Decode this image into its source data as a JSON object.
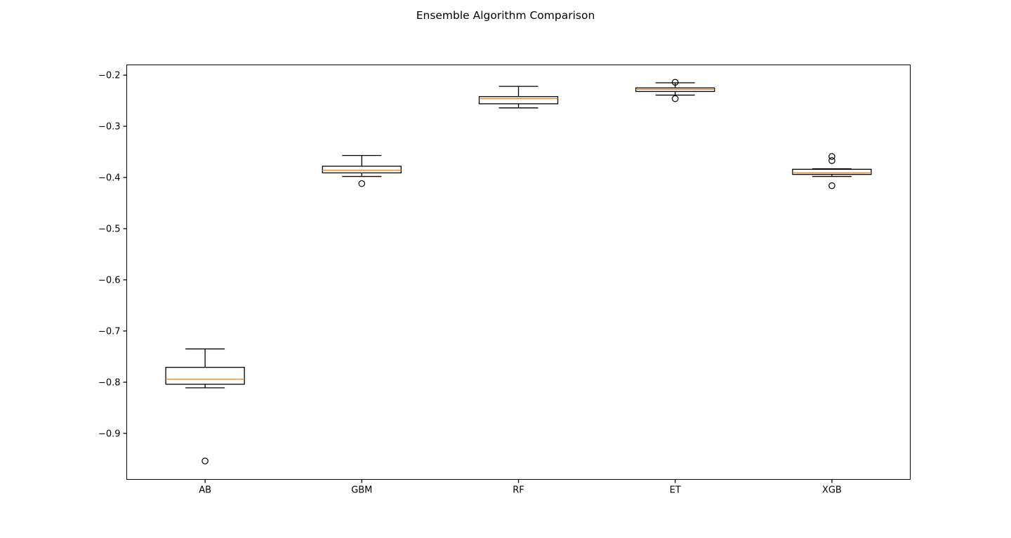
{
  "chart_data": {
    "type": "boxplot",
    "title": "Ensemble Algorithm Comparison",
    "xlabel": "",
    "ylabel": "",
    "categories": [
      "AB",
      "GBM",
      "RF",
      "ET",
      "XGB"
    ],
    "ylim": [
      -0.99,
      -0.18
    ],
    "yticks": [
      -0.9,
      -0.8,
      -0.7,
      -0.6,
      -0.5,
      -0.4,
      -0.3,
      -0.2
    ],
    "ytick_labels": [
      "−0.9",
      "−0.8",
      "−0.7",
      "−0.6",
      "−0.5",
      "−0.4",
      "−0.3",
      "−0.2"
    ],
    "grid": false,
    "boxes": [
      {
        "whisker_low": -0.811,
        "q1": -0.804,
        "median": -0.794,
        "q3": -0.771,
        "whisker_high": -0.735,
        "outliers": [
          -0.954
        ]
      },
      {
        "whisker_low": -0.398,
        "q1": -0.391,
        "median": -0.386,
        "q3": -0.378,
        "whisker_high": -0.357,
        "outliers": [
          -0.412
        ]
      },
      {
        "whisker_low": -0.264,
        "q1": -0.256,
        "median": -0.246,
        "q3": -0.242,
        "whisker_high": -0.222,
        "outliers": []
      },
      {
        "whisker_low": -0.239,
        "q1": -0.232,
        "median": -0.228,
        "q3": -0.225,
        "whisker_high": -0.215,
        "outliers": [
          -0.214,
          -0.246
        ]
      },
      {
        "whisker_low": -0.398,
        "q1": -0.394,
        "median": -0.391,
        "q3": -0.384,
        "whisker_high": -0.383,
        "outliers": [
          -0.359,
          -0.367,
          -0.416
        ]
      }
    ],
    "colors": {
      "box": "#000000",
      "median": "#ff7f0e",
      "outlier_edge": "#000000"
    }
  }
}
